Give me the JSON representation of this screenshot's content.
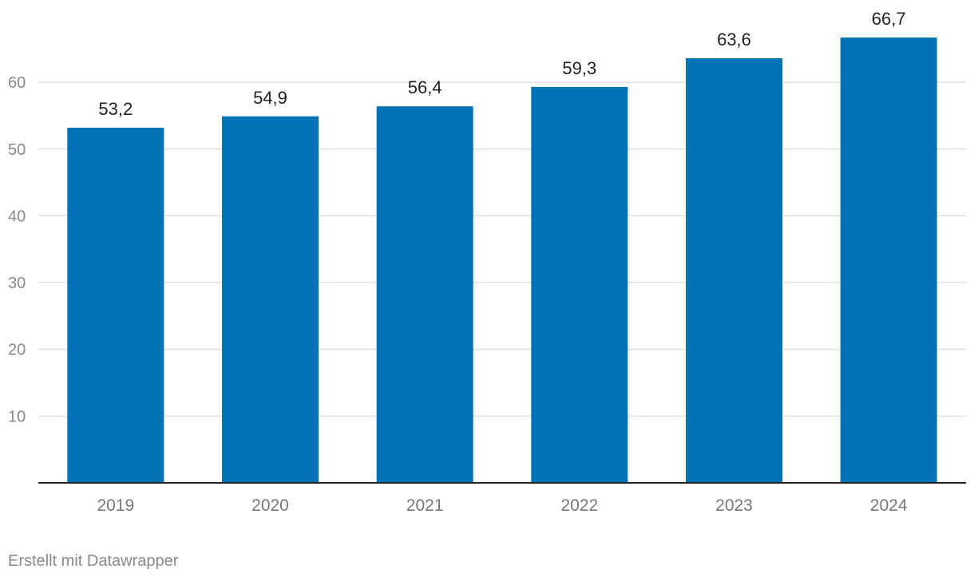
{
  "chart_data": {
    "type": "bar",
    "categories": [
      "2019",
      "2020",
      "2021",
      "2022",
      "2023",
      "2024"
    ],
    "values": [
      53.2,
      54.9,
      56.4,
      59.3,
      63.6,
      66.7
    ],
    "value_labels": [
      "53,2",
      "54,9",
      "56,4",
      "59,3",
      "63,6",
      "66,7"
    ],
    "yticks": [
      10,
      20,
      30,
      40,
      50,
      60
    ],
    "ylim": [
      0,
      70
    ],
    "grid": true,
    "bar_color": "#0073b7",
    "gridline_color": "#e0e0e0",
    "axis_text_color": "#8a8a8a",
    "label_color": "#222222"
  },
  "footer": {
    "credit": "Erstellt mit Datawrapper"
  }
}
